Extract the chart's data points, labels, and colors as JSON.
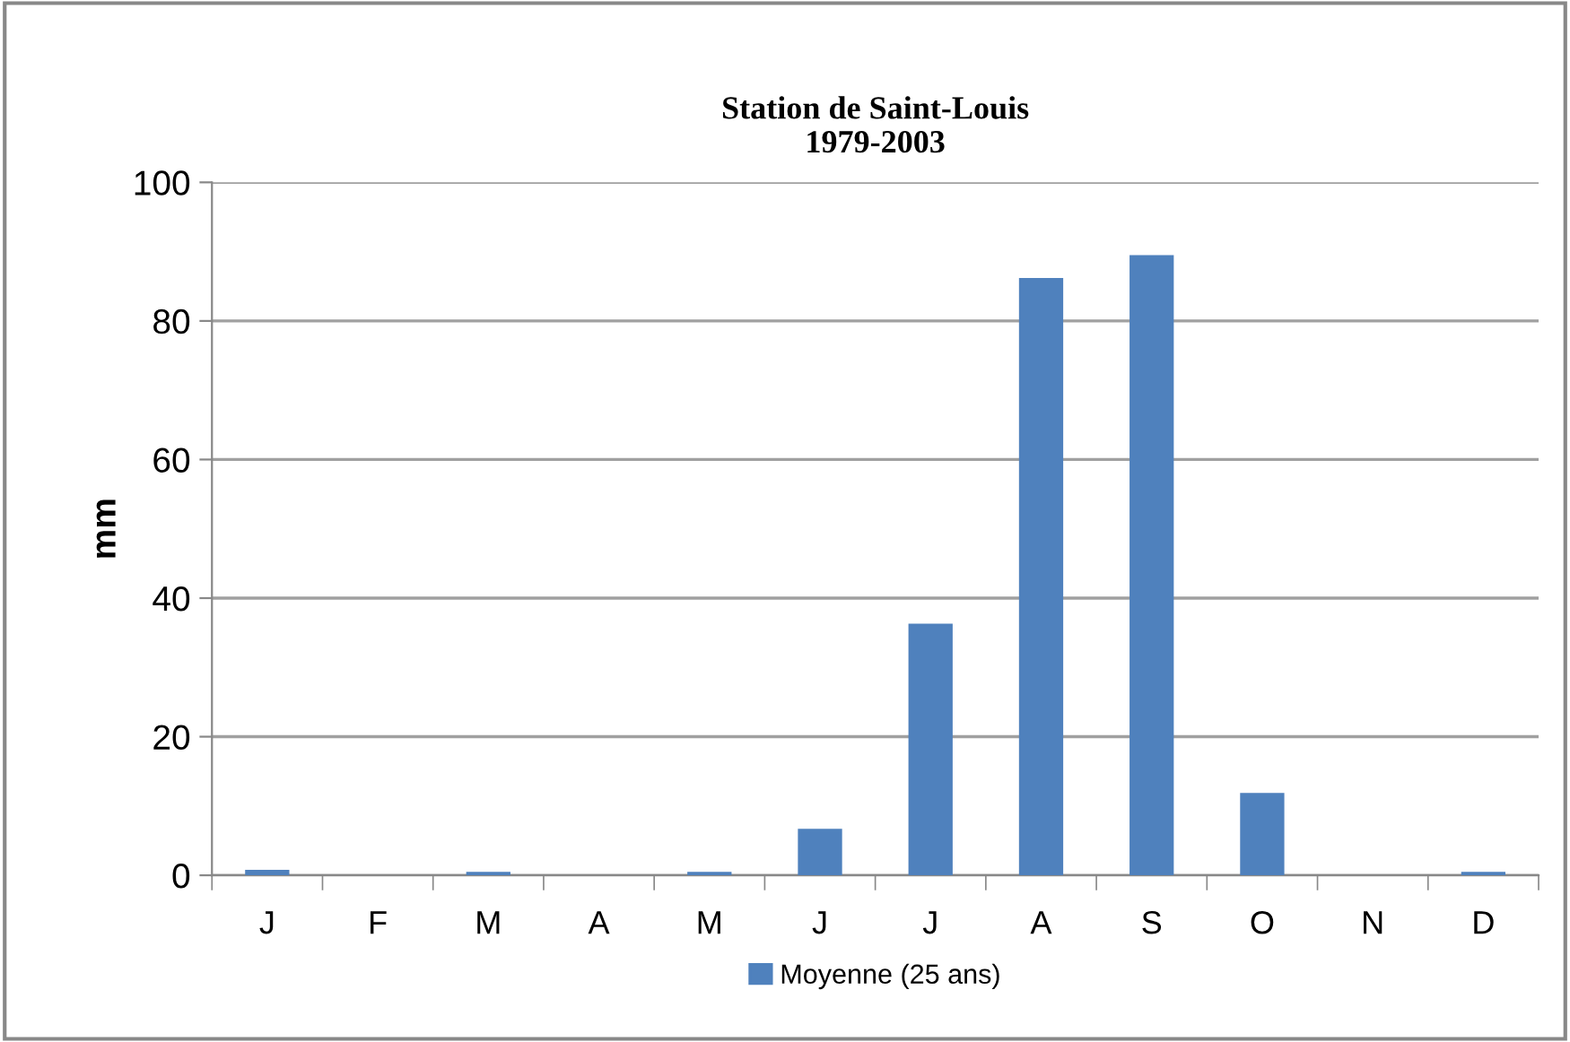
{
  "chart_data": {
    "type": "bar",
    "title": "Station de Saint-Louis\n1979-2003",
    "ylabel": "mm",
    "categories": [
      "J",
      "F",
      "M",
      "A",
      "M",
      "J",
      "J",
      "A",
      "S",
      "O",
      "N",
      "D"
    ],
    "series": [
      {
        "name": "Moyenne (25 ans)",
        "color": "#4f81bd",
        "values": [
          0.8,
          0,
          0.5,
          0,
          0.5,
          6.7,
          36.3,
          86.2,
          89.5,
          11.9,
          0,
          0.5
        ]
      }
    ],
    "ylim": [
      0,
      100
    ],
    "yticks": [
      0,
      20,
      40,
      60,
      80,
      100
    ],
    "grid": "y",
    "legend": "bottom"
  }
}
